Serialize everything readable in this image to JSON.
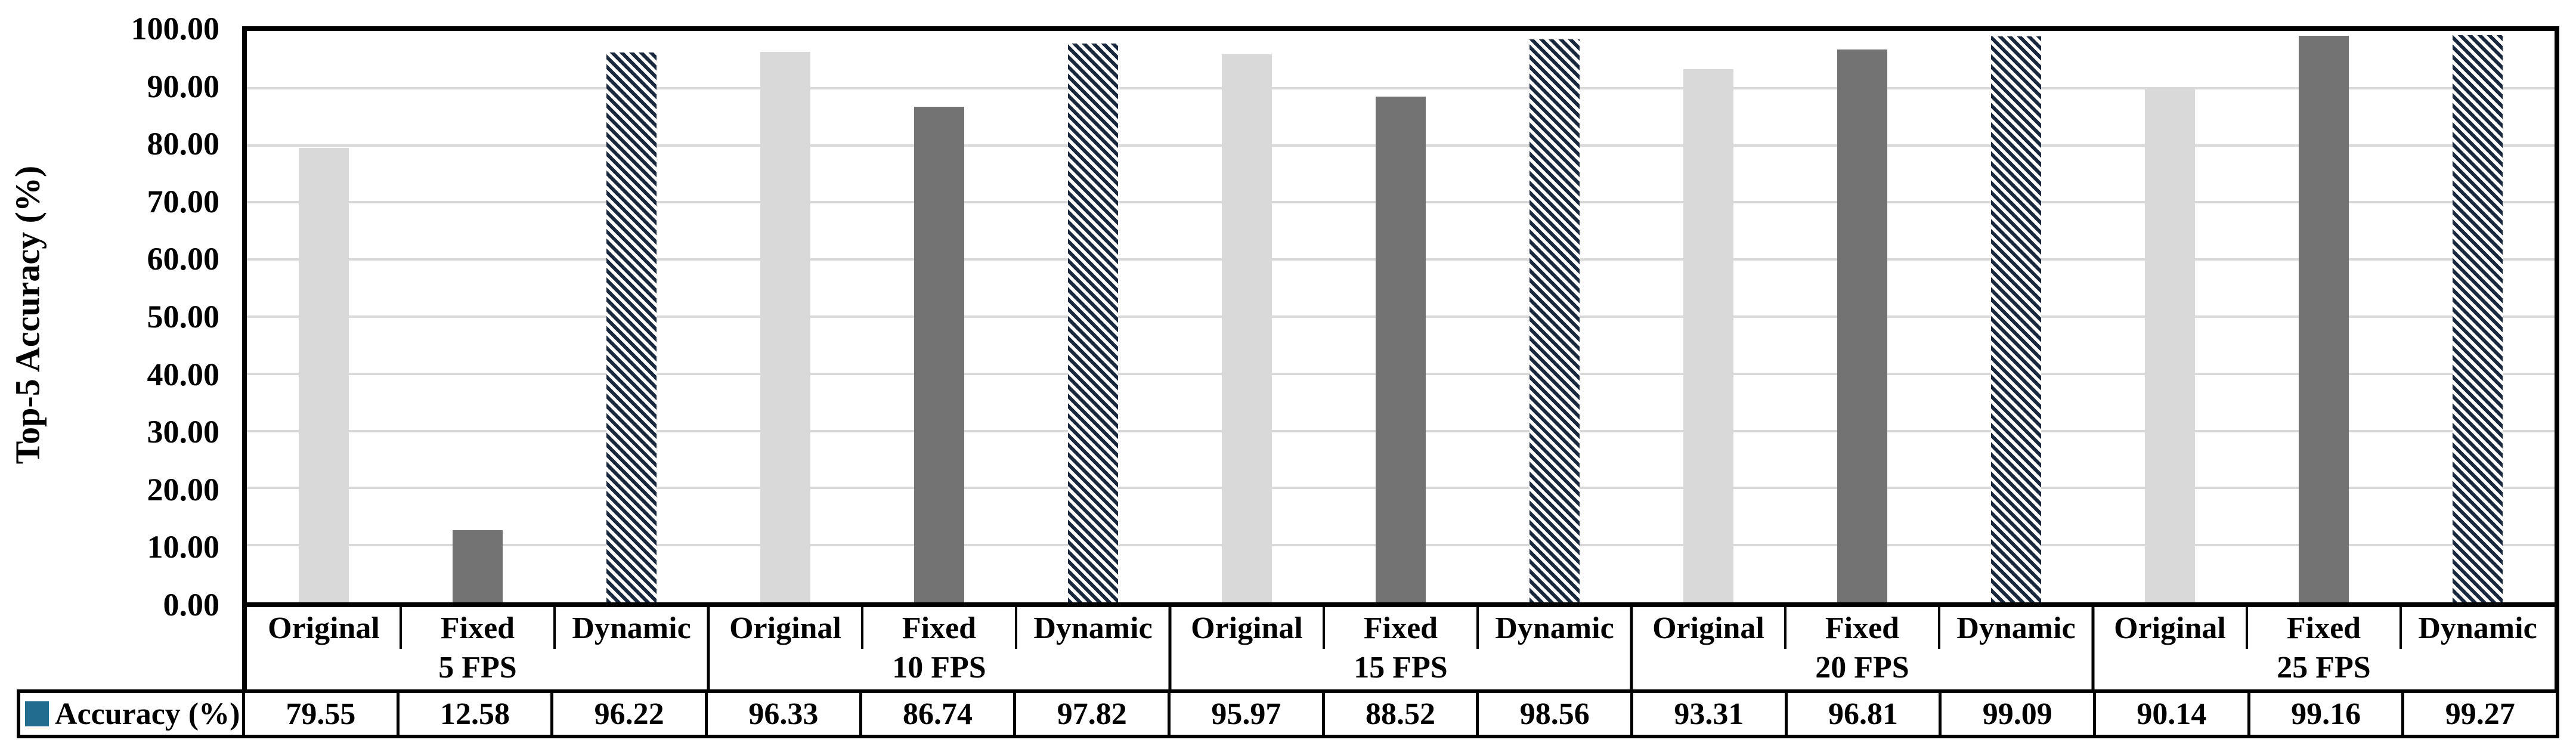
{
  "chart_data": {
    "type": "bar",
    "title": "",
    "ylabel": "Top-5 Accuracy (%)",
    "xlabel": "",
    "ylim": [
      0,
      100
    ],
    "ytick_step": 10,
    "ytick_labels_top_to_bottom": [
      "100.00",
      "90.00",
      "80.00",
      "70.00",
      "60.00",
      "50.00",
      "40.00",
      "30.00",
      "20.00",
      "10.00",
      "0.00"
    ],
    "grid": true,
    "legend_position": "table-row-left",
    "bar_categories": [
      "Original",
      "Fixed",
      "Dynamic"
    ],
    "group_labels": [
      "5 FPS",
      "10 FPS",
      "15 FPS",
      "20 FPS",
      "25 FPS"
    ],
    "series": [
      {
        "name": "Accuracy (%)",
        "values": [
          79.55,
          12.58,
          96.22,
          96.33,
          86.74,
          97.82,
          95.97,
          88.52,
          98.56,
          93.31,
          96.81,
          99.09,
          90.14,
          99.16,
          99.27
        ]
      }
    ],
    "value_labels": [
      "79.55",
      "12.58",
      "96.22",
      "96.33",
      "86.74",
      "97.82",
      "95.97",
      "88.52",
      "98.56",
      "93.31",
      "96.81",
      "99.09",
      "90.14",
      "99.16",
      "99.27"
    ],
    "bar_style_by_category": {
      "Original": "light",
      "Fixed": "dark",
      "Dynamic": "hatch"
    }
  },
  "legend": {
    "series_label": "Accuracy (%)",
    "marker_color": "#226C8F"
  },
  "colors": {
    "bar_light": "#D9D9D9",
    "bar_dark": "#737373",
    "hatch_stripe": "#1A283E",
    "hatch_background": "#FFFFFF",
    "gridline": "#D9D9D9",
    "axis": "#000000",
    "background": "#FFFFFF"
  }
}
